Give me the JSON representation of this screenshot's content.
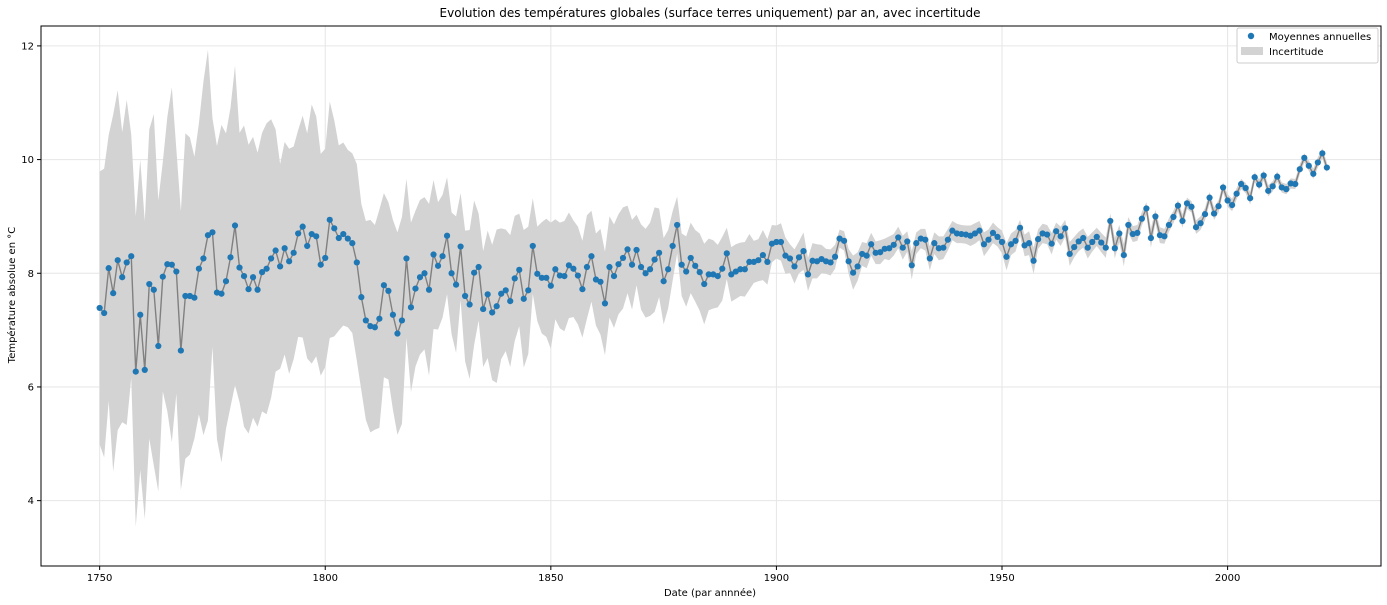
{
  "chart_data": {
    "type": "line",
    "title": "Evolution des températures globales (surface terres uniquement) par an, avec incertitude",
    "xlabel": "Date (par annnée)",
    "ylabel": "Température absolue en °C",
    "xlim": [
      1737,
      2034
    ],
    "ylim": [
      2.85,
      12.35
    ],
    "xticks": [
      1750,
      1800,
      1850,
      1900,
      1950,
      2000
    ],
    "yticks": [
      4,
      6,
      8,
      10,
      12
    ],
    "grid": true,
    "legend_position": "top-right",
    "legend": [
      {
        "label": "Moyennes annuelles",
        "kind": "marker"
      },
      {
        "label": "Incertitude",
        "kind": "patch"
      }
    ],
    "colors": {
      "marker": "#1f77b4",
      "line": "#808080",
      "band": "#d3d3d3",
      "grid": "#e6e6e6"
    },
    "series": [
      {
        "name": "Moyennes annuelles",
        "x_start": 1750,
        "x_step": 1,
        "values": [
          7.39,
          7.3,
          8.09,
          7.65,
          8.23,
          7.93,
          8.19,
          8.3,
          6.27,
          7.27,
          6.3,
          7.81,
          7.71,
          6.72,
          7.94,
          8.16,
          8.15,
          8.03,
          6.64,
          7.6,
          7.6,
          7.57,
          8.08,
          8.26,
          8.67,
          8.72,
          7.66,
          7.64,
          7.86,
          8.28,
          8.84,
          8.1,
          7.95,
          7.72,
          7.93,
          7.71,
          8.02,
          8.08,
          8.26,
          8.4,
          8.12,
          8.44,
          8.21,
          8.36,
          8.7,
          8.82,
          8.48,
          8.69,
          8.65,
          8.15,
          8.27,
          8.94,
          8.79,
          8.62,
          8.69,
          8.61,
          8.53,
          8.19,
          7.58,
          7.17,
          7.07,
          7.05,
          7.2,
          7.79,
          7.69,
          7.27,
          6.94,
          7.17,
          8.26,
          7.4,
          7.73,
          7.93,
          8.0,
          7.71,
          8.33,
          8.13,
          8.3,
          8.66,
          8.0,
          7.8,
          8.47,
          7.6,
          7.45,
          8.01,
          8.11,
          7.37,
          7.63,
          7.31,
          7.42,
          7.64,
          7.7,
          7.51,
          7.91,
          8.06,
          7.55,
          7.7,
          8.48,
          7.99,
          7.92,
          7.92,
          7.78,
          8.07,
          7.96,
          7.95,
          8.14,
          8.08,
          7.96,
          7.72,
          8.11,
          8.3,
          7.89,
          7.85,
          7.47,
          8.11,
          7.95,
          8.16,
          8.27,
          8.42,
          8.15,
          8.41,
          8.11,
          8.0,
          8.07,
          8.24,
          8.36,
          7.86,
          8.07,
          8.48,
          8.85,
          8.15,
          8.03,
          8.27,
          8.13,
          8.02,
          7.81,
          7.98,
          7.98,
          7.95,
          8.08,
          8.35,
          7.98,
          8.03,
          8.07,
          8.07,
          8.2,
          8.2,
          8.23,
          8.32,
          8.2,
          8.52,
          8.55,
          8.55,
          8.31,
          8.26,
          8.12,
          8.28,
          8.39,
          7.98,
          8.22,
          8.21,
          8.25,
          8.21,
          8.19,
          8.29,
          8.61,
          8.57,
          8.21,
          8.01,
          8.12,
          8.34,
          8.31,
          8.51,
          8.36,
          8.37,
          8.43,
          8.44,
          8.5,
          8.63,
          8.45,
          8.56,
          8.14,
          8.53,
          8.61,
          8.59,
          8.26,
          8.53,
          8.44,
          8.45,
          8.59,
          8.75,
          8.7,
          8.69,
          8.68,
          8.66,
          8.7,
          8.75,
          8.51,
          8.59,
          8.71,
          8.64,
          8.55,
          8.29,
          8.51,
          8.57,
          8.8,
          8.49,
          8.53,
          8.22,
          8.6,
          8.7,
          8.68,
          8.52,
          8.74,
          8.65,
          8.79,
          8.34,
          8.46,
          8.56,
          8.62,
          8.45,
          8.55,
          8.64,
          8.54,
          8.45,
          8.92,
          8.44,
          8.7,
          8.32,
          8.85,
          8.69,
          8.71,
          8.96,
          9.14,
          8.62,
          9.0,
          8.67,
          8.65,
          8.85,
          8.99,
          9.19,
          8.92,
          9.23,
          9.17,
          8.81,
          8.88,
          9.04,
          9.33,
          9.05,
          9.18,
          9.51,
          9.28,
          9.2,
          9.4,
          9.57,
          9.5,
          9.32,
          9.69,
          9.56,
          9.72,
          9.45,
          9.53,
          9.7,
          9.51,
          9.48,
          9.58,
          9.57,
          9.83,
          10.03,
          9.89,
          9.75,
          9.95,
          10.11,
          9.86
        ]
      },
      {
        "name": "Incertitude",
        "x_start": 1750,
        "x_step": 1,
        "upper": [
          9.79,
          9.84,
          10.43,
          10.79,
          11.22,
          10.48,
          11.05,
          10.44,
          9.0,
          10.0,
          8.92,
          10.53,
          10.8,
          9.28,
          9.96,
          10.75,
          11.27,
          10.18,
          9.09,
          10.46,
          10.39,
          10.05,
          10.64,
          11.37,
          11.93,
          10.73,
          10.24,
          10.61,
          10.46,
          10.91,
          11.65,
          10.47,
          10.6,
          10.26,
          10.4,
          10.12,
          10.47,
          10.64,
          10.71,
          10.53,
          9.92,
          10.31,
          10.19,
          10.23,
          10.52,
          10.77,
          10.46,
          10.97,
          10.76,
          10.1,
          10.19,
          11.02,
          10.69,
          10.25,
          10.3,
          10.17,
          10.11,
          9.92,
          9.22,
          8.92,
          8.94,
          8.85,
          9.12,
          9.41,
          9.25,
          8.94,
          8.72,
          8.99,
          9.66,
          8.89,
          9.1,
          9.29,
          9.34,
          9.22,
          9.64,
          9.25,
          9.38,
          9.69,
          9.07,
          9.0,
          9.41,
          8.75,
          8.76,
          9.28,
          9.05,
          8.39,
          8.75,
          8.5,
          8.77,
          8.79,
          8.77,
          8.67,
          9.01,
          9.05,
          8.76,
          8.82,
          9.32,
          8.82,
          8.9,
          8.96,
          8.89,
          8.95,
          8.89,
          8.92,
          9.07,
          8.93,
          8.82,
          8.57,
          9.02,
          9.1,
          8.7,
          8.78,
          8.38,
          9.0,
          8.86,
          9.04,
          9.16,
          9.19,
          8.94,
          9.03,
          8.86,
          8.78,
          8.89,
          9.16,
          9.14,
          8.62,
          8.76,
          9.09,
          9.35,
          8.7,
          8.65,
          8.89,
          8.76,
          8.7,
          8.52,
          8.61,
          8.58,
          8.5,
          8.64,
          8.8,
          8.46,
          8.51,
          8.54,
          8.55,
          8.69,
          8.57,
          8.6,
          8.76,
          8.6,
          8.85,
          8.84,
          8.88,
          8.63,
          8.51,
          8.42,
          8.56,
          8.72,
          8.27,
          8.53,
          8.51,
          8.5,
          8.43,
          8.42,
          8.5,
          8.77,
          8.74,
          8.43,
          8.31,
          8.37,
          8.55,
          8.53,
          8.71,
          8.56,
          8.58,
          8.61,
          8.65,
          8.69,
          8.82,
          8.66,
          8.74,
          8.39,
          8.72,
          8.78,
          8.78,
          8.47,
          8.72,
          8.65,
          8.65,
          8.78,
          8.92,
          8.87,
          8.85,
          8.84,
          8.84,
          8.88,
          8.92,
          8.72,
          8.77,
          8.89,
          8.81,
          8.75,
          8.53,
          8.7,
          8.76,
          8.94,
          8.68,
          8.74,
          8.45,
          8.77,
          8.87,
          8.85,
          8.71,
          8.89,
          8.82,
          8.94,
          8.55,
          8.64,
          8.73,
          8.79,
          8.64,
          8.72,
          8.8,
          8.71,
          8.63,
          9.05,
          8.62,
          8.85,
          8.52,
          8.99,
          8.83,
          8.85,
          9.08,
          9.25,
          8.79,
          9.12,
          8.81,
          8.78,
          8.97,
          9.1,
          9.29,
          9.04,
          9.33,
          9.27,
          8.93,
          9.0,
          9.15,
          9.43,
          9.16,
          9.29,
          9.6,
          9.39,
          9.31,
          9.5,
          9.66,
          9.59,
          9.43,
          9.78,
          9.65,
          9.81,
          9.55,
          9.62,
          9.79,
          9.6,
          9.57,
          9.67,
          9.66,
          9.92,
          10.11,
          9.98,
          9.84,
          10.04,
          10.2,
          9.95
        ],
        "lower": [
          4.99,
          4.76,
          5.75,
          4.51,
          5.24,
          5.38,
          5.33,
          6.16,
          3.54,
          4.54,
          3.68,
          5.09,
          4.62,
          4.16,
          5.92,
          5.57,
          5.03,
          5.88,
          4.19,
          4.74,
          4.81,
          5.09,
          5.52,
          5.15,
          5.41,
          6.71,
          5.08,
          4.67,
          5.26,
          5.65,
          6.03,
          5.73,
          5.3,
          5.18,
          5.46,
          5.3,
          5.57,
          5.52,
          5.81,
          6.27,
          6.32,
          6.57,
          6.23,
          6.49,
          6.88,
          6.87,
          6.5,
          6.41,
          6.54,
          6.2,
          6.35,
          6.86,
          6.89,
          6.99,
          7.08,
          7.05,
          6.95,
          6.46,
          5.94,
          5.42,
          5.2,
          5.25,
          5.28,
          6.17,
          6.13,
          5.6,
          5.16,
          5.35,
          6.86,
          5.91,
          6.36,
          6.57,
          6.66,
          6.2,
          7.02,
          7.01,
          7.22,
          7.63,
          6.93,
          6.6,
          7.53,
          6.45,
          6.14,
          6.74,
          7.17,
          6.35,
          6.51,
          6.12,
          6.07,
          6.49,
          6.63,
          6.35,
          6.81,
          7.07,
          6.34,
          6.58,
          7.64,
          7.16,
          6.94,
          6.88,
          6.67,
          7.19,
          7.03,
          6.98,
          7.21,
          7.23,
          7.1,
          6.87,
          7.2,
          7.5,
          7.08,
          6.92,
          6.56,
          7.22,
          7.04,
          7.28,
          7.38,
          7.65,
          7.36,
          7.79,
          7.36,
          7.22,
          7.25,
          7.32,
          7.58,
          7.1,
          7.38,
          7.87,
          8.35,
          7.6,
          7.41,
          7.65,
          7.5,
          7.34,
          7.1,
          7.35,
          7.38,
          7.4,
          7.52,
          7.9,
          7.5,
          7.55,
          7.6,
          7.59,
          7.71,
          7.83,
          7.86,
          7.88,
          7.8,
          8.19,
          8.26,
          8.22,
          7.99,
          8.01,
          7.82,
          8.0,
          8.06,
          7.69,
          7.91,
          7.91,
          8.0,
          7.99,
          7.96,
          8.08,
          8.45,
          8.4,
          7.99,
          7.71,
          7.87,
          8.13,
          8.09,
          8.31,
          8.16,
          8.16,
          8.25,
          8.23,
          8.31,
          8.44,
          8.24,
          8.38,
          7.89,
          8.34,
          8.44,
          8.4,
          8.05,
          8.34,
          8.23,
          8.25,
          8.4,
          8.58,
          8.53,
          8.53,
          8.52,
          8.48,
          8.52,
          8.58,
          8.3,
          8.41,
          8.53,
          8.47,
          8.35,
          8.05,
          8.32,
          8.38,
          8.66,
          8.3,
          8.32,
          7.99,
          8.43,
          8.53,
          8.51,
          8.33,
          8.59,
          8.48,
          8.64,
          8.13,
          8.28,
          8.39,
          8.45,
          8.26,
          8.38,
          8.48,
          8.37,
          8.27,
          8.79,
          8.26,
          8.55,
          8.12,
          8.71,
          8.55,
          8.57,
          8.84,
          9.03,
          8.45,
          8.88,
          8.53,
          8.52,
          8.73,
          8.88,
          9.09,
          8.8,
          9.13,
          9.07,
          8.69,
          8.76,
          8.93,
          9.23,
          8.94,
          9.07,
          9.42,
          9.17,
          9.09,
          9.3,
          9.48,
          9.41,
          9.21,
          9.6,
          9.47,
          9.63,
          9.35,
          9.44,
          9.61,
          9.42,
          9.39,
          9.49,
          9.48,
          9.74,
          9.95,
          9.8,
          9.66,
          9.86,
          10.02,
          9.77
        ]
      }
    ]
  }
}
